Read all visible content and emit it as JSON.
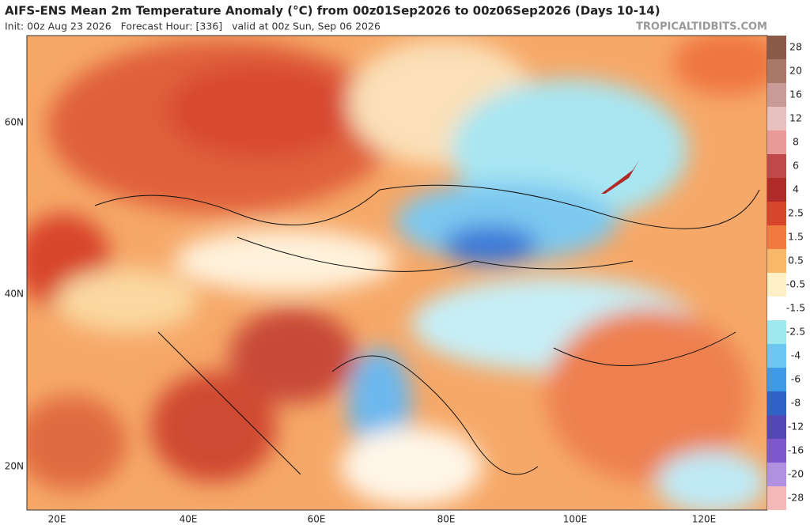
{
  "header": {
    "title": "AIFS-ENS Mean 2m Temperature Anomaly (°C) from 00z01Sep2026 to 00z06Sep2026 (Days 10-14)",
    "subtitle": "Init: 00z Aug 23 2026   Forecast Hour: [336]   valid at 00z Sun, Sep 06 2026",
    "watermark": "TROPICALTIDBITS.COM"
  },
  "colorbar": {
    "labels": [
      28,
      20,
      16,
      12,
      8,
      6,
      4,
      2.5,
      1.5,
      0.5,
      -0.5,
      -1.5,
      -2.5,
      -4,
      -6,
      -8,
      -12,
      -16,
      -20,
      -28
    ],
    "colors": [
      "#8a5a48",
      "#a87868",
      "#c89a98",
      "#e8c0c0",
      "#e89a98",
      "#c04848",
      "#b02a2a",
      "#d8442c",
      "#f07a40",
      "#f8b86a",
      "#fff0c8",
      "#ffffff",
      "#9ceaee",
      "#6cc8f0",
      "#3c9ae6",
      "#2e62c8",
      "#5448b8",
      "#7c58cc",
      "#b090e0",
      "#f4b8b8"
    ]
  },
  "map": {
    "lat_labels": [
      "60N",
      "40N",
      "20N"
    ],
    "lon_labels": [
      "20E",
      "40E",
      "60E",
      "80E",
      "100E",
      "120E"
    ]
  }
}
